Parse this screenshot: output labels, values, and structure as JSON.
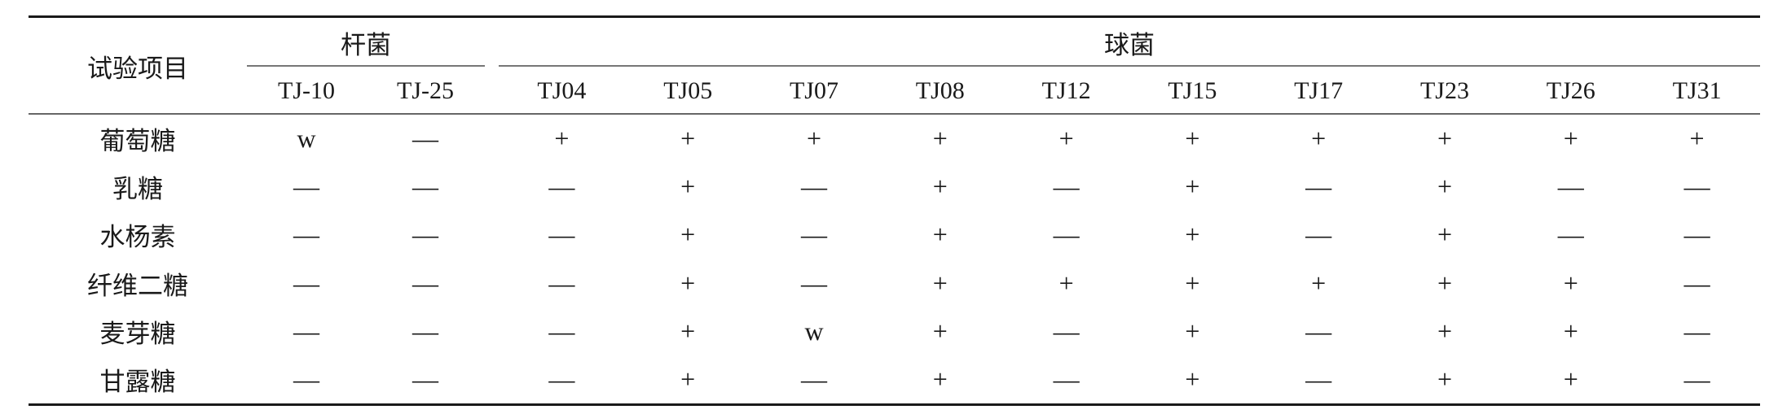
{
  "table": {
    "item_header": "试验项目",
    "groups": [
      {
        "label": "杆菌",
        "strains": [
          "TJ-10",
          "TJ-25"
        ]
      },
      {
        "label": "球菌",
        "strains": [
          "TJ04",
          "TJ05",
          "TJ07",
          "TJ08",
          "TJ12",
          "TJ15",
          "TJ17",
          "TJ23",
          "TJ26",
          "TJ31"
        ]
      }
    ],
    "rows": [
      {
        "item": "葡萄糖",
        "values": [
          "w",
          "—",
          "+",
          "+",
          "+",
          "+",
          "+",
          "+",
          "+",
          "+",
          "+",
          "+"
        ]
      },
      {
        "item": "乳糖",
        "values": [
          "—",
          "—",
          "—",
          "+",
          "—",
          "+",
          "—",
          "+",
          "—",
          "+",
          "—",
          "—"
        ]
      },
      {
        "item": "水杨素",
        "values": [
          "—",
          "—",
          "—",
          "+",
          "—",
          "+",
          "—",
          "+",
          "—",
          "+",
          "—",
          "—"
        ]
      },
      {
        "item": "纤维二糖",
        "values": [
          "—",
          "—",
          "—",
          "+",
          "—",
          "+",
          "+",
          "+",
          "+",
          "+",
          "+",
          "—"
        ]
      },
      {
        "item": "麦芽糖",
        "values": [
          "—",
          "—",
          "—",
          "+",
          "w",
          "+",
          "—",
          "+",
          "—",
          "+",
          "+",
          "—"
        ]
      },
      {
        "item": "甘露糖",
        "values": [
          "—",
          "—",
          "—",
          "+",
          "—",
          "+",
          "—",
          "+",
          "—",
          "+",
          "+",
          "—"
        ]
      }
    ]
  }
}
